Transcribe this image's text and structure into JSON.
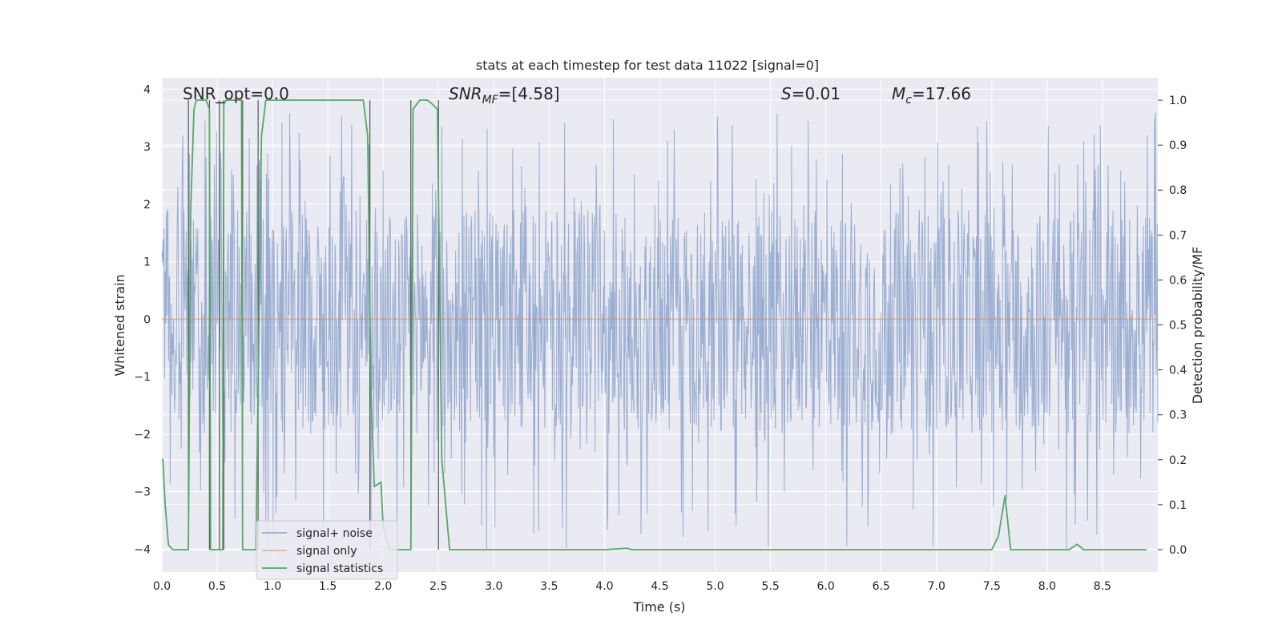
{
  "chart_data": {
    "type": "line",
    "title": "stats at each timestep for test data 11022 [signal=0]",
    "xlabel": "Time (s)",
    "ylabel_left": "Whitened strain",
    "ylabel_right": "Detection probability/MF",
    "xlim": [
      0,
      9.0
    ],
    "ylim_left": [
      -4.4,
      4.2
    ],
    "ylim_right": [
      -0.05,
      1.05
    ],
    "x_ticks": [
      0.0,
      0.5,
      1.0,
      1.5,
      2.0,
      2.5,
      3.0,
      3.5,
      4.0,
      4.5,
      5.0,
      5.5,
      6.0,
      6.5,
      7.0,
      7.5,
      8.0,
      8.5
    ],
    "x_tick_labels": [
      "0.0",
      "0.5",
      "1.0",
      "1.5",
      "2.0",
      "2.5",
      "3.0",
      "3.5",
      "4.0",
      "4.5",
      "5.0",
      "5.5",
      "6.0",
      "6.5",
      "7.0",
      "7.5",
      "8.0",
      "8.5"
    ],
    "y_left_ticks": [
      -4,
      -3,
      -2,
      -1,
      0,
      1,
      2,
      3,
      4
    ],
    "y_left_tick_labels": [
      "−4",
      "−3",
      "−2",
      "−1",
      "0",
      "1",
      "2",
      "3",
      "4"
    ],
    "y_right_ticks": [
      0.0,
      0.1,
      0.2,
      0.3,
      0.4,
      0.5,
      0.6,
      0.7,
      0.8,
      0.9,
      1.0
    ],
    "y_right_tick_labels": [
      "0.0",
      "0.1",
      "0.2",
      "0.3",
      "0.4",
      "0.5",
      "0.6",
      "0.7",
      "0.8",
      "0.9",
      "1.0"
    ],
    "annotations": {
      "snr_opt": "SNR_opt=0.0",
      "snr_mf_sym": "SNR",
      "snr_mf_sub": "MF",
      "snr_mf_val": "=[4.58]",
      "s_sym": "S",
      "s_val": "=0.01",
      "mc_sym": "M",
      "mc_sub": "c",
      "mc_val": "=17.66"
    },
    "legend": {
      "position": "lower-left",
      "entries": [
        "signal+ noise",
        "signal only",
        "signal statistics"
      ]
    },
    "colors": {
      "background": "#eaeaf2",
      "grid": "#ffffff",
      "noise": "#4c72b0",
      "signal": "#dd8452",
      "statistic": "#55a868",
      "vlines": "#555555"
    },
    "series": [
      {
        "name": "signal+ noise",
        "style": "dense noise trace",
        "sample_rate_hz": 200,
        "envelope_low": -2.0,
        "envelope_high": 1.9,
        "peak_min": -4.0,
        "peak_max": 3.6
      },
      {
        "name": "signal only",
        "x": [
          0.0,
          9.0
        ],
        "y": [
          0.0,
          0.0
        ]
      },
      {
        "name": "signal statistics",
        "axis": "right",
        "x": [
          0.0,
          0.01,
          0.03,
          0.06,
          0.1,
          0.2,
          0.24,
          0.26,
          0.29,
          0.31,
          0.36,
          0.4,
          0.43,
          0.44,
          0.5,
          0.55,
          0.56,
          0.58,
          0.62,
          0.66,
          0.72,
          0.73,
          0.76,
          0.8,
          0.85,
          0.9,
          0.94,
          0.98,
          1.1,
          1.4,
          1.7,
          1.82,
          1.86,
          1.89,
          1.92,
          1.98,
          2.0,
          2.06,
          2.15,
          2.2,
          2.25,
          2.27,
          2.33,
          2.4,
          2.45,
          2.49,
          2.53,
          2.6,
          3.0,
          4.0,
          4.2,
          4.25,
          4.3,
          5.0,
          6.0,
          7.0,
          7.5,
          7.56,
          7.62,
          7.67,
          7.7,
          8.0,
          8.2,
          8.27,
          8.33,
          8.4,
          8.9
        ],
        "y": [
          0.2,
          0.2,
          0.1,
          0.01,
          0.0,
          0.0,
          0.0,
          0.75,
          0.98,
          1.0,
          1.0,
          1.0,
          0.98,
          0.0,
          0.0,
          0.0,
          0.99,
          1.0,
          1.0,
          1.0,
          1.0,
          0.0,
          0.0,
          0.0,
          0.0,
          0.92,
          1.0,
          1.0,
          1.0,
          1.0,
          1.0,
          1.0,
          0.92,
          0.35,
          0.14,
          0.15,
          0.05,
          0.0,
          0.0,
          0.0,
          0.0,
          0.98,
          1.0,
          1.0,
          0.99,
          0.98,
          0.2,
          0.0,
          0.0,
          0.0,
          0.003,
          0.0,
          0.0,
          0.0,
          0.0,
          0.0,
          0.0,
          0.03,
          0.12,
          0.0,
          0.0,
          0.0,
          0.0,
          0.012,
          0.0,
          0.0,
          0.0
        ]
      }
    ],
    "vertical_markers_s": [
      0.24,
      0.43,
      0.52,
      0.56,
      0.73,
      0.87,
      1.88,
      2.25,
      2.5
    ]
  }
}
